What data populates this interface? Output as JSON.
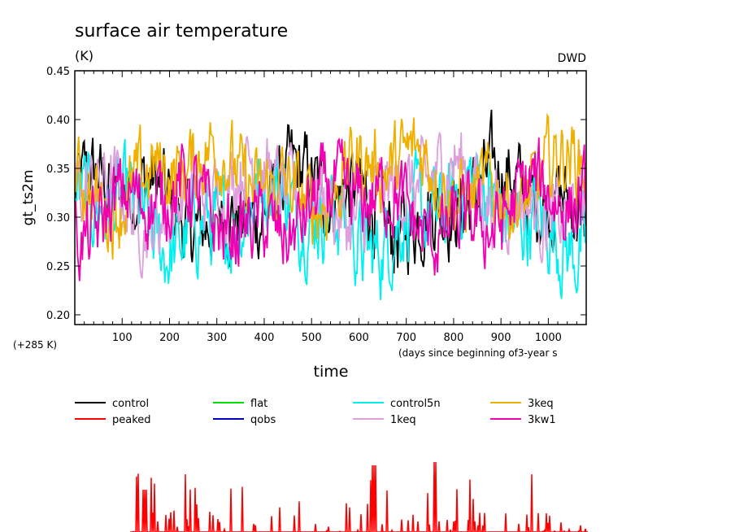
{
  "chart_data": {
    "type": "line",
    "title": "surface air temperature",
    "units": "(K)",
    "source_label": "DWD",
    "ylabel": "gt_ts2m",
    "xlabel": "time",
    "offset_label": "(+285 K)",
    "x_note": "(days since beginning of3-year s",
    "xlim": [
      0,
      1080
    ],
    "ylim": [
      0.19,
      0.45
    ],
    "x_ticks": [
      "100",
      "200",
      "300",
      "400",
      "500",
      "600",
      "700",
      "800",
      "900",
      "1000"
    ],
    "y_ticks": [
      "0.20",
      "0.25",
      "0.30",
      "0.35",
      "0.40",
      "0.45"
    ],
    "grid": false,
    "legend_position": "bottom",
    "series": [
      {
        "name": "control",
        "color": "#000000",
        "mean": 0.315,
        "amp": 0.042,
        "phase": 0.2,
        "values": null
      },
      {
        "name": "peaked",
        "color": "#ff0000",
        "mean": null,
        "amp": null,
        "phase": 0,
        "values": null
      },
      {
        "name": "flat",
        "color": "#00e000",
        "mean": null,
        "amp": null,
        "phase": 0,
        "values": null
      },
      {
        "name": "qobs",
        "color": "#0000c0",
        "mean": null,
        "amp": null,
        "phase": 0,
        "values": null
      },
      {
        "name": "control5n",
        "color": "#00f0f0",
        "mean": 0.3,
        "amp": 0.045,
        "phase": 1.3,
        "values": null
      },
      {
        "name": "1keq",
        "color": "#dda0dd",
        "mean": 0.325,
        "amp": 0.04,
        "phase": 2.1,
        "values": null
      },
      {
        "name": "3keq",
        "color": "#f0b000",
        "mean": 0.34,
        "amp": 0.04,
        "phase": 3.7,
        "values": null
      },
      {
        "name": "3kw1",
        "color": "#f000b0",
        "mean": 0.305,
        "amp": 0.04,
        "phase": 5.0,
        "values": null
      }
    ]
  }
}
